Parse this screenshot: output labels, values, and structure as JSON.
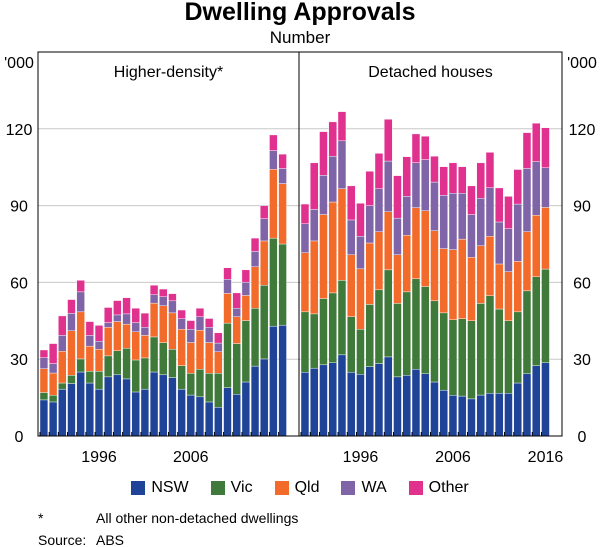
{
  "title": "Dwelling Approvals",
  "subtitle": "Number",
  "colors": {
    "NSW": "#1f4497",
    "Vic": "#3f7a3a",
    "Qld": "#f26b2a",
    "WA": "#8064a8",
    "Other": "#e0318f"
  },
  "legend": [
    "NSW",
    "Vic",
    "Qld",
    "WA",
    "Other"
  ],
  "footnote": {
    "marker": "*",
    "text": "All other non-detached dwellings"
  },
  "source": {
    "label": "Source:",
    "text": "ABS"
  },
  "chart_data": [
    {
      "type": "bar",
      "stacked": true,
      "title": "Higher-density*",
      "ylabel": "'000",
      "ylim": [
        0,
        150
      ],
      "yticks": [
        0,
        30,
        60,
        90,
        120
      ],
      "xtick_labels": [
        "1996",
        "2006"
      ],
      "grid": true,
      "x": [
        1990,
        1991,
        1992,
        1993,
        1994,
        1995,
        1996,
        1997,
        1998,
        1999,
        2000,
        2001,
        2002,
        2003,
        2004,
        2005,
        2006,
        2007,
        2008,
        2009,
        2010,
        2011,
        2012,
        2013,
        2014,
        2015,
        2016
      ],
      "series": [
        {
          "name": "NSW",
          "values": [
            14.1,
            13.3,
            18.3,
            20.5,
            25.0,
            20.7,
            18.3,
            23.1,
            23.9,
            22.3,
            17.2,
            18.3,
            25.0,
            23.9,
            22.8,
            18.3,
            16.0,
            15.3,
            13.3,
            11.2,
            18.9,
            16.3,
            21.1,
            27.3,
            30.1,
            42.9,
            43.3
          ]
        },
        {
          "name": "Vic",
          "values": [
            2.9,
            2.6,
            2.4,
            3.2,
            5.1,
            4.6,
            7.0,
            8.2,
            9.4,
            12.0,
            12.5,
            12.2,
            13.7,
            12.6,
            11.1,
            9.2,
            8.5,
            10.8,
            11.2,
            13.3,
            25.2,
            19.8,
            24.0,
            22.6,
            28.8,
            34.4,
            31.7
          ]
        },
        {
          "name": "Qld",
          "values": [
            9.3,
            8.7,
            12.4,
            17.4,
            18.4,
            9.8,
            8.6,
            11.2,
            11.4,
            9.4,
            11.0,
            8.8,
            13.2,
            14.4,
            14.2,
            14.2,
            12.0,
            15.2,
            12.0,
            8.4,
            11.6,
            10.5,
            9.8,
            16.2,
            17.3,
            26.9,
            23.6
          ]
        },
        {
          "name": "WA",
          "values": [
            4.3,
            3.7,
            6.2,
            6.8,
            7.8,
            4.2,
            3.1,
            1.8,
            2.6,
            4.0,
            3.6,
            3.2,
            3.3,
            3.5,
            4.7,
            4.1,
            5.2,
            5.3,
            6.0,
            3.4,
            5.5,
            3.3,
            5.2,
            6.0,
            8.7,
            7.3,
            5.9
          ]
        },
        {
          "name": "Other",
          "values": [
            3.0,
            7.8,
            7.6,
            5.4,
            4.5,
            5.4,
            6.2,
            5.9,
            5.6,
            6.3,
            5.6,
            5.5,
            3.7,
            3.0,
            2.8,
            3.4,
            3.4,
            3.3,
            3.4,
            4.0,
            4.5,
            6.0,
            4.8,
            5.2,
            5.1,
            6.1,
            5.6
          ]
        }
      ]
    },
    {
      "type": "bar",
      "stacked": true,
      "title": "Detached houses",
      "ylabel": "'000",
      "ylim": [
        0,
        150
      ],
      "yticks": [
        0,
        30,
        60,
        90,
        120
      ],
      "xtick_labels": [
        "1996",
        "2006",
        "2016"
      ],
      "grid": true,
      "x": [
        1990,
        1991,
        1992,
        1993,
        1994,
        1995,
        1996,
        1997,
        1998,
        1999,
        2000,
        2001,
        2002,
        2003,
        2004,
        2005,
        2006,
        2007,
        2008,
        2009,
        2010,
        2011,
        2012,
        2013,
        2014,
        2015,
        2016
      ],
      "series": [
        {
          "name": "NSW",
          "values": [
            24.9,
            26.5,
            27.8,
            28.6,
            31.7,
            24.9,
            24.1,
            27.1,
            28.3,
            30.9,
            23.1,
            23.7,
            26.1,
            24.3,
            21.1,
            17.9,
            15.9,
            15.6,
            14.5,
            16.0,
            16.7,
            16.7,
            16.7,
            20.7,
            24.3,
            27.5,
            28.6
          ]
        },
        {
          "name": "Vic",
          "values": [
            23.6,
            21.2,
            25.9,
            27.3,
            29.1,
            21.7,
            17.6,
            24.3,
            28.8,
            34.0,
            28.7,
            32.6,
            35.3,
            34.1,
            31.7,
            30.2,
            29.5,
            30.2,
            30.5,
            35.8,
            38.1,
            32.9,
            28.3,
            27.8,
            32.4,
            34.7,
            36.6
          ]
        },
        {
          "name": "Qld",
          "values": [
            23.1,
            28.5,
            32.8,
            35.5,
            35.8,
            24.2,
            23.6,
            24.0,
            22.7,
            22.7,
            19.0,
            22.1,
            27.8,
            29.6,
            27.4,
            25.1,
            27.4,
            31.1,
            24.8,
            22.5,
            23.2,
            17.6,
            19.2,
            19.7,
            23.1,
            24.0,
            24.1
          ]
        },
        {
          "name": "WA",
          "values": [
            11.3,
            12.3,
            15.3,
            17.9,
            18.7,
            13.6,
            12.7,
            14.6,
            16.8,
            19.8,
            14.3,
            15.2,
            17.6,
            20.0,
            19.0,
            20.8,
            22.0,
            17.9,
            16.7,
            18.6,
            19.0,
            16.4,
            16.8,
            22.4,
            24.7,
            21.0,
            15.5
          ]
        },
        {
          "name": "Other",
          "values": [
            7.7,
            18.2,
            17.1,
            13.4,
            11.4,
            13.3,
            12.9,
            13.4,
            13.8,
            16.3,
            16.6,
            15.5,
            11.2,
            9.1,
            10.1,
            11.2,
            11.9,
            10.4,
            11.2,
            13.8,
            13.8,
            13.3,
            12.6,
            13.5,
            14.0,
            15.0,
            15.6
          ]
        }
      ]
    }
  ]
}
